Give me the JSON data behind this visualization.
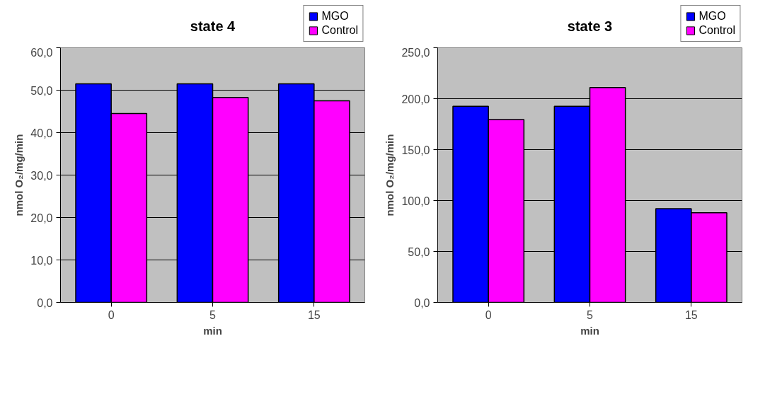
{
  "chart_data": [
    {
      "type": "bar",
      "title": "state 4",
      "xlabel": "min",
      "ylabel": "nmol O₂/mg/min",
      "categories": [
        "0",
        "5",
        "15"
      ],
      "series": [
        {
          "name": "MGO",
          "color": "#0000ff",
          "values": [
            51.5,
            51.5,
            51.5
          ]
        },
        {
          "name": "Control",
          "color": "#ff00ff",
          "values": [
            44.5,
            48.3,
            47.5
          ]
        }
      ],
      "ylim": [
        0,
        60
      ],
      "yticks": [
        {
          "value": 0,
          "label": "0,0"
        },
        {
          "value": 10,
          "label": "10,0"
        },
        {
          "value": 20,
          "label": "20,0"
        },
        {
          "value": 30,
          "label": "30,0"
        },
        {
          "value": 40,
          "label": "40,0"
        },
        {
          "value": 50,
          "label": "50,0"
        },
        {
          "value": 60,
          "label": "60,0"
        }
      ],
      "grid": "y",
      "legend": "top right"
    },
    {
      "type": "bar",
      "title": "state 3",
      "xlabel": "min",
      "ylabel": "nmol O₂/mg/min",
      "categories": [
        "0",
        "5",
        "15"
      ],
      "series": [
        {
          "name": "MGO",
          "color": "#0000ff",
          "values": [
            192.5,
            192.5,
            92
          ]
        },
        {
          "name": "Control",
          "color": "#ff00ff",
          "values": [
            179.5,
            211,
            88
          ]
        }
      ],
      "ylim": [
        0,
        250
      ],
      "yticks": [
        {
          "value": 0,
          "label": "0,0"
        },
        {
          "value": 50,
          "label": "50,0"
        },
        {
          "value": 100,
          "label": "100,0"
        },
        {
          "value": 150,
          "label": "150,0"
        },
        {
          "value": 200,
          "label": "200,0"
        },
        {
          "value": 250,
          "label": "250,0"
        }
      ],
      "grid": "y",
      "legend": "top right"
    }
  ]
}
